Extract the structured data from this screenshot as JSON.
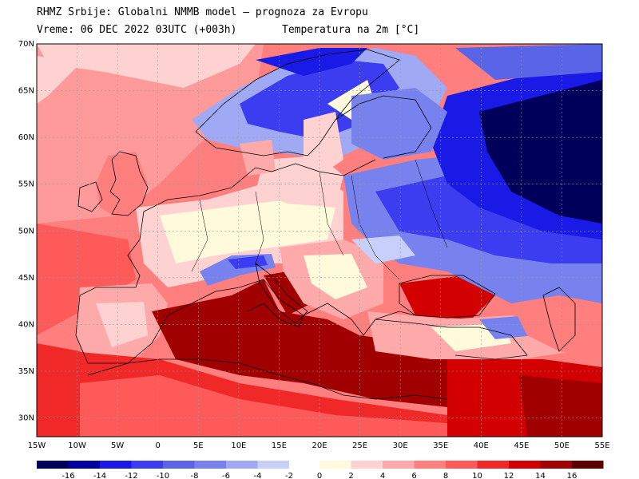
{
  "header": {
    "line1": "RHMZ Srbije: Globalni NMMB model — prognoza za Evropu",
    "line2": "Vreme: 06 DEC 2022 03UTC (+003h)",
    "line3": "Temperatura na 2m [°C]"
  },
  "axes": {
    "lat_labels": [
      "70N",
      "65N",
      "60N",
      "55N",
      "50N",
      "45N",
      "40N",
      "35N",
      "30N"
    ],
    "lat_values": [
      70,
      65,
      60,
      55,
      50,
      45,
      40,
      35,
      30
    ],
    "lon_labels": [
      "15W",
      "10W",
      "5W",
      "0",
      "5E",
      "10E",
      "15E",
      "20E",
      "25E",
      "30E",
      "35E",
      "40E",
      "45E",
      "50E",
      "55E"
    ],
    "lon_values": [
      -15,
      -10,
      -5,
      0,
      5,
      10,
      15,
      20,
      25,
      30,
      35,
      40,
      45,
      50,
      55
    ],
    "lat_range": [
      28,
      70
    ],
    "lon_range": [
      -15,
      55
    ]
  },
  "colorbar": {
    "neg_labels": [
      "-16",
      "-14",
      "-12",
      "-10",
      "-8",
      "-6",
      "-4",
      "-2"
    ],
    "pos_labels": [
      "0",
      "2",
      "4",
      "6",
      "8",
      "10",
      "12",
      "14",
      "16"
    ],
    "neg_colors": [
      "#00005a",
      "#0000a0",
      "#1a1ae6",
      "#3c3cf0",
      "#5a64e6",
      "#7882ee",
      "#a0aaf4",
      "#c8d0fa"
    ],
    "pos_colors": [
      "#fffadc",
      "#ffd2d2",
      "#ffaaaa",
      "#ff7f7f",
      "#ff5a5a",
      "#f02828",
      "#d20000",
      "#a00000",
      "#5a0000"
    ]
  },
  "colors": {
    "land_border": "#000000",
    "grid": "#999999"
  }
}
